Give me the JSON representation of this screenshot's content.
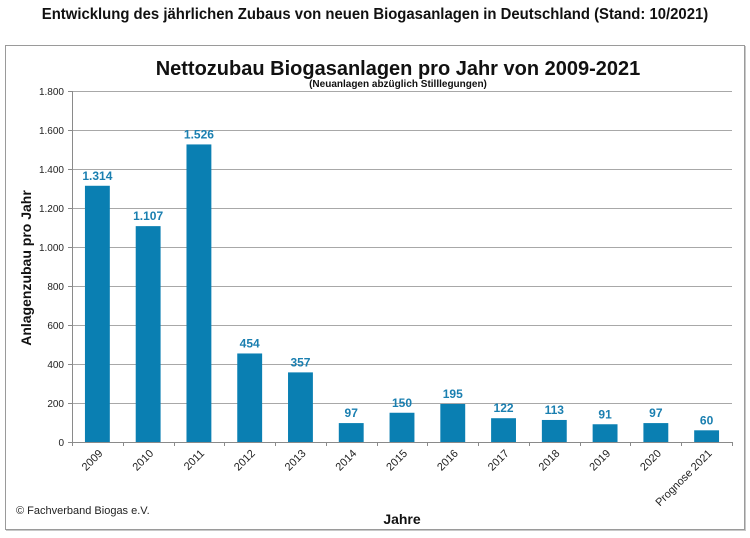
{
  "page": {
    "title": "Entwicklung des jährlichen Zubaus von neuen Biogasanlagen in Deutschland (Stand: 10/2021)",
    "copyright": "© Fachverband Biogas e.V."
  },
  "colors": {
    "bar": "#0a7fb2",
    "data_label": "#1a7fb0"
  },
  "chart_data": {
    "type": "bar",
    "title": "Nettozubau Biogasanlagen pro Jahr von 2009-2021",
    "subtitle": "(Neuanlagen abzüglich Stilllegungen)",
    "xlabel": "Jahre",
    "ylabel": "Anlagenzubau pro Jahr",
    "ylim": [
      0,
      1800
    ],
    "yticks": [
      0,
      200,
      400,
      600,
      800,
      1000,
      1200,
      1400,
      1600,
      1800
    ],
    "ytick_labels": [
      "0",
      "200",
      "400",
      "600",
      "800",
      "1.000",
      "1.200",
      "1.400",
      "1.600",
      "1.800"
    ],
    "grid": true,
    "legend": "none",
    "categories": [
      "2009",
      "2010",
      "2011",
      "2012",
      "2013",
      "2014",
      "2015",
      "2016",
      "2017",
      "2018",
      "2019",
      "2020",
      "Prognose 2021"
    ],
    "values": [
      1314,
      1107,
      1526,
      454,
      357,
      97,
      150,
      195,
      122,
      113,
      91,
      97,
      60
    ],
    "data_labels": [
      "1.314",
      "1.107",
      "1.526",
      "454",
      "357",
      "97",
      "150",
      "195",
      "122",
      "113",
      "91",
      "97",
      "60"
    ]
  }
}
